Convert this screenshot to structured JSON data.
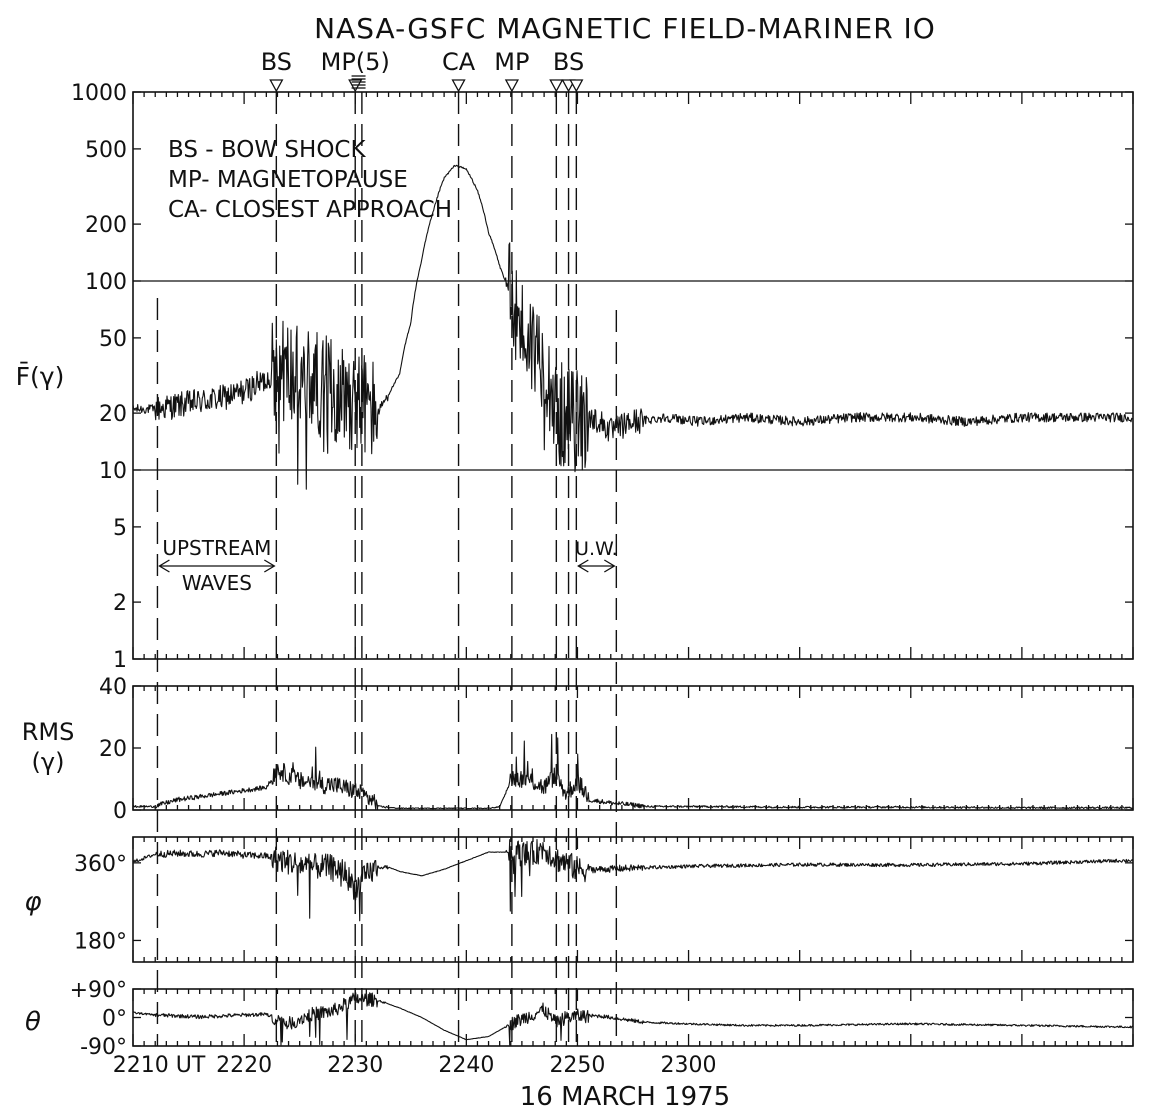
{
  "chart_data": {
    "type": "line",
    "title": "NASA-GSFC MAGNETIC FIELD-MARINER IO",
    "xlabel": "16 MARCH 1975",
    "x_ticks": [
      "2210 UT",
      "2220",
      "2230",
      "2240",
      "2250",
      "2300"
    ],
    "xlim": [
      2210,
      2300
    ],
    "legend": [
      "BS - BOW SHOCK",
      "MP- MAGNETOPAUSE",
      "CA- CLOSEST APPROACH"
    ],
    "event_markers": [
      {
        "label": "BS",
        "time": 2222.9
      },
      {
        "label": "MP(5)",
        "time": 2230.0
      },
      {
        "label": "CA",
        "time": 2239.3
      },
      {
        "label": "MP",
        "time": 2244.1
      },
      {
        "label": "",
        "time": 2248.1
      },
      {
        "label": "BS",
        "time": 2249.2
      },
      {
        "label": "",
        "time": 2249.9
      }
    ],
    "annotations": [
      {
        "text": "UPSTREAM",
        "from": 2212.2,
        "to": 2222.9
      },
      {
        "text": "WAVES",
        "from": 2212.2,
        "to": 2222.9
      },
      {
        "text": "U.W.",
        "from": 2249.9,
        "to": 2253.5
      }
    ],
    "panels": [
      {
        "id": "F",
        "ylabel": "F̄(γ)",
        "scale": "log",
        "ylim": [
          1,
          1000
        ],
        "y_ticks": [
          "1000",
          "500",
          "200",
          "100",
          "50",
          "20",
          "10",
          "5",
          "2",
          "1"
        ],
        "series": [
          {
            "x": [
              2210,
              2212,
              2214,
              2216,
              2218,
              2220,
              2222,
              2223,
              2224,
              2225,
              2226,
              2227,
              2228,
              2229,
              2230,
              2231,
              2232,
              2233,
              2234,
              2235,
              2236,
              2237,
              2238,
              2239,
              2240,
              2241,
              2242,
              2243,
              2244,
              2245,
              2246,
              2247,
              2248,
              2249,
              2250,
              2251,
              2252,
              2253,
              2255,
              2258,
              2261,
              2265,
              2270,
              2275,
              2280,
              2285,
              2290,
              2295,
              2300
            ],
            "values": [
              21,
              21,
              22,
              23,
              24,
              26,
              30,
              35,
              33,
              30,
              30,
              28,
              27,
              25,
              24,
              22,
              20,
              25,
              32,
              60,
              130,
              230,
              350,
              410,
              390,
              300,
              180,
              120,
              80,
              55,
              45,
              40,
              20,
              19,
              18,
              19,
              18,
              16,
              18,
              19,
              18,
              19,
              18,
              19,
              19,
              18,
              19,
              19,
              19
            ]
          }
        ]
      },
      {
        "id": "RMS",
        "ylabel": "RMS\n(γ)",
        "scale": "linear",
        "ylim": [
          0,
          40
        ],
        "y_ticks": [
          "40",
          "20",
          "0"
        ],
        "series": [
          {
            "x": [
              2210,
              2212,
              2214,
              2216,
              2218,
              2220,
              2222,
              2223,
              2224,
              2225,
              2226,
              2227,
              2228,
              2229,
              2230,
              2231,
              2232,
              2234,
              2236,
              2238,
              2240,
              2242,
              2243,
              2244,
              2245,
              2246,
              2247,
              2248,
              2249,
              2250,
              2251,
              2253,
              2256,
              2260,
              2270,
              2280,
              2290,
              2300
            ],
            "values": [
              1,
              1,
              3,
              4,
              5,
              6,
              7,
              12,
              10,
              8,
              8,
              7,
              7,
              6,
              5,
              3,
              1,
              0.5,
              0.5,
              0.5,
              0.5,
              0.5,
              1,
              9,
              9,
              8,
              6,
              10,
              4,
              8,
              3,
              2,
              1,
              1,
              0.8,
              0.8,
              0.6,
              0.6
            ]
          }
        ]
      },
      {
        "id": "PHI",
        "ylabel": "φ",
        "scale": "linear",
        "ylim": [
          130,
          420
        ],
        "y_ticks": [
          "360°",
          "180°"
        ],
        "series": [
          {
            "x": [
              2210,
              2212,
              2214,
              2216,
              2218,
              2220,
              2222,
              2224,
              2226,
              2228,
              2229,
              2230,
              2231,
              2232,
              2233,
              2234,
              2236,
              2238,
              2240,
              2242,
              2244,
              2246,
              2247,
              2248,
              2249,
              2250,
              2252,
              2255,
              2260,
              2270,
              2280,
              2290,
              2300
            ],
            "values": [
              362,
              380,
              382,
              380,
              384,
              378,
              376,
              362,
              352,
              350,
              340,
              300,
              330,
              350,
              350,
              340,
              330,
              345,
              365,
              385,
              385,
              380,
              395,
              370,
              360,
              345,
              345,
              348,
              352,
              356,
              355,
              358,
              366
            ]
          }
        ]
      },
      {
        "id": "THETA",
        "ylabel": "θ",
        "scale": "linear",
        "ylim": [
          -90,
          90
        ],
        "y_ticks": [
          "+90°",
          "0°",
          "-90°"
        ],
        "series": [
          {
            "x": [
              2210,
              2212,
              2214,
              2216,
              2218,
              2220,
              2222,
              2224,
              2226,
              2228,
              2230,
              2232,
              2234,
              2236,
              2238,
              2240,
              2242,
              2244,
              2246,
              2247,
              2248,
              2249,
              2250,
              2252,
              2254,
              2256,
              2260,
              2265,
              2270,
              2280,
              2290,
              2300
            ],
            "values": [
              15,
              8,
              5,
              2,
              5,
              8,
              10,
              -20,
              10,
              20,
              60,
              55,
              30,
              0,
              -40,
              -70,
              -60,
              -20,
              10,
              25,
              -15,
              0,
              5,
              5,
              -5,
              -15,
              -20,
              -25,
              -25,
              -20,
              -25,
              -30
            ]
          }
        ]
      }
    ]
  }
}
